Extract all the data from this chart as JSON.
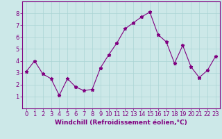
{
  "x": [
    0,
    1,
    2,
    3,
    4,
    5,
    6,
    7,
    8,
    9,
    10,
    11,
    12,
    13,
    14,
    15,
    16,
    17,
    18,
    19,
    20,
    21,
    22,
    23
  ],
  "y": [
    3.1,
    4.0,
    2.9,
    2.5,
    1.1,
    2.5,
    1.8,
    1.5,
    1.6,
    3.4,
    4.5,
    5.5,
    6.7,
    7.2,
    7.7,
    8.1,
    6.2,
    5.6,
    3.8,
    5.3,
    3.5,
    2.6,
    3.2,
    4.4
  ],
  "line_color": "#800080",
  "marker": "*",
  "background_color": "#cce8e8",
  "grid_color": "#aad4d4",
  "xlabel": "Windchill (Refroidissement éolien,°C)",
  "xlim": [
    -0.5,
    23.5
  ],
  "ylim": [
    0,
    9
  ],
  "yticks": [
    1,
    2,
    3,
    4,
    5,
    6,
    7,
    8
  ],
  "xticks": [
    0,
    1,
    2,
    3,
    4,
    5,
    6,
    7,
    8,
    9,
    10,
    11,
    12,
    13,
    14,
    15,
    16,
    17,
    18,
    19,
    20,
    21,
    22,
    23
  ],
  "tick_color": "#800080",
  "label_color": "#800080",
  "spine_color": "#800080",
  "xlabel_fontsize": 6.5,
  "tick_fontsize": 6.0,
  "line_width": 0.8,
  "marker_size": 3.5
}
